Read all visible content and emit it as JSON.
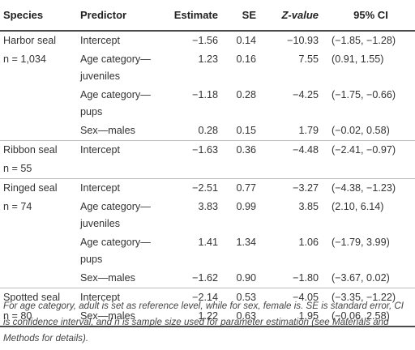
{
  "table": {
    "headers": {
      "species": "Species",
      "predictor": "Predictor",
      "estimate": "Estimate",
      "se": "SE",
      "z_value": "Z-value",
      "ci": "95% CI"
    },
    "rows": [
      {
        "species": "Harbor seal",
        "predictor": "Intercept",
        "estimate": "−1.56",
        "se": "0.14",
        "z": "−10.93",
        "ci": "(−1.85, −1.28)"
      },
      {
        "species": "n = 1,034",
        "predictor": "Age category—juveniles",
        "estimate": "1.23",
        "se": "0.16",
        "z": "7.55",
        "ci": "(0.91, 1.55)"
      },
      {
        "species": "",
        "predictor": "Age category—pups",
        "estimate": "−1.18",
        "se": "0.28",
        "z": "−4.25",
        "ci": "(−1.75, −0.66)"
      },
      {
        "species": "",
        "predictor": "Sex—males",
        "estimate": "0.28",
        "se": "0.15",
        "z": "1.79",
        "ci": "(−0.02, 0.58)"
      },
      {
        "species": "Ribbon seal",
        "predictor": "Intercept",
        "estimate": "−1.63",
        "se": "0.36",
        "z": "−4.48",
        "ci": "(−2.41, −0.97)"
      },
      {
        "species": "n = 55",
        "predictor": "",
        "estimate": "",
        "se": "",
        "z": "",
        "ci": ""
      },
      {
        "species": "Ringed seal",
        "predictor": "Intercept",
        "estimate": "−2.51",
        "se": "0.77",
        "z": "−3.27",
        "ci": "(−4.38, −1.23)"
      },
      {
        "species": "n = 74",
        "predictor": "Age category—juveniles",
        "estimate": "3.83",
        "se": "0.99",
        "z": "3.85",
        "ci": "(2.10, 6.14)"
      },
      {
        "species": "",
        "predictor": "Age category—pups",
        "estimate": "1.41",
        "se": "1.34",
        "z": "1.06",
        "ci": "(−1.79, 3.99)"
      },
      {
        "species": "",
        "predictor": "Sex—males",
        "estimate": "−1.62",
        "se": "0.90",
        "z": "−1.80",
        "ci": "(−3.67, 0.02)"
      },
      {
        "species": "Spotted seal",
        "predictor": "Intercept",
        "estimate": "−2.14",
        "se": "0.53",
        "z": "−4.05",
        "ci": "(−3.35, −1.22)"
      },
      {
        "species": "n = 80",
        "predictor": "Sex—males",
        "estimate": "1.22",
        "se": "0.63",
        "z": "1.95",
        "ci": "(−0.06, 2.58)"
      }
    ]
  },
  "footnote": "For age category, adult is set as reference level, while for sex, female is. SE is standard error, CI is confidence interval, and n is sample size used for parameter estimation (see Materials and Methods for details)."
}
